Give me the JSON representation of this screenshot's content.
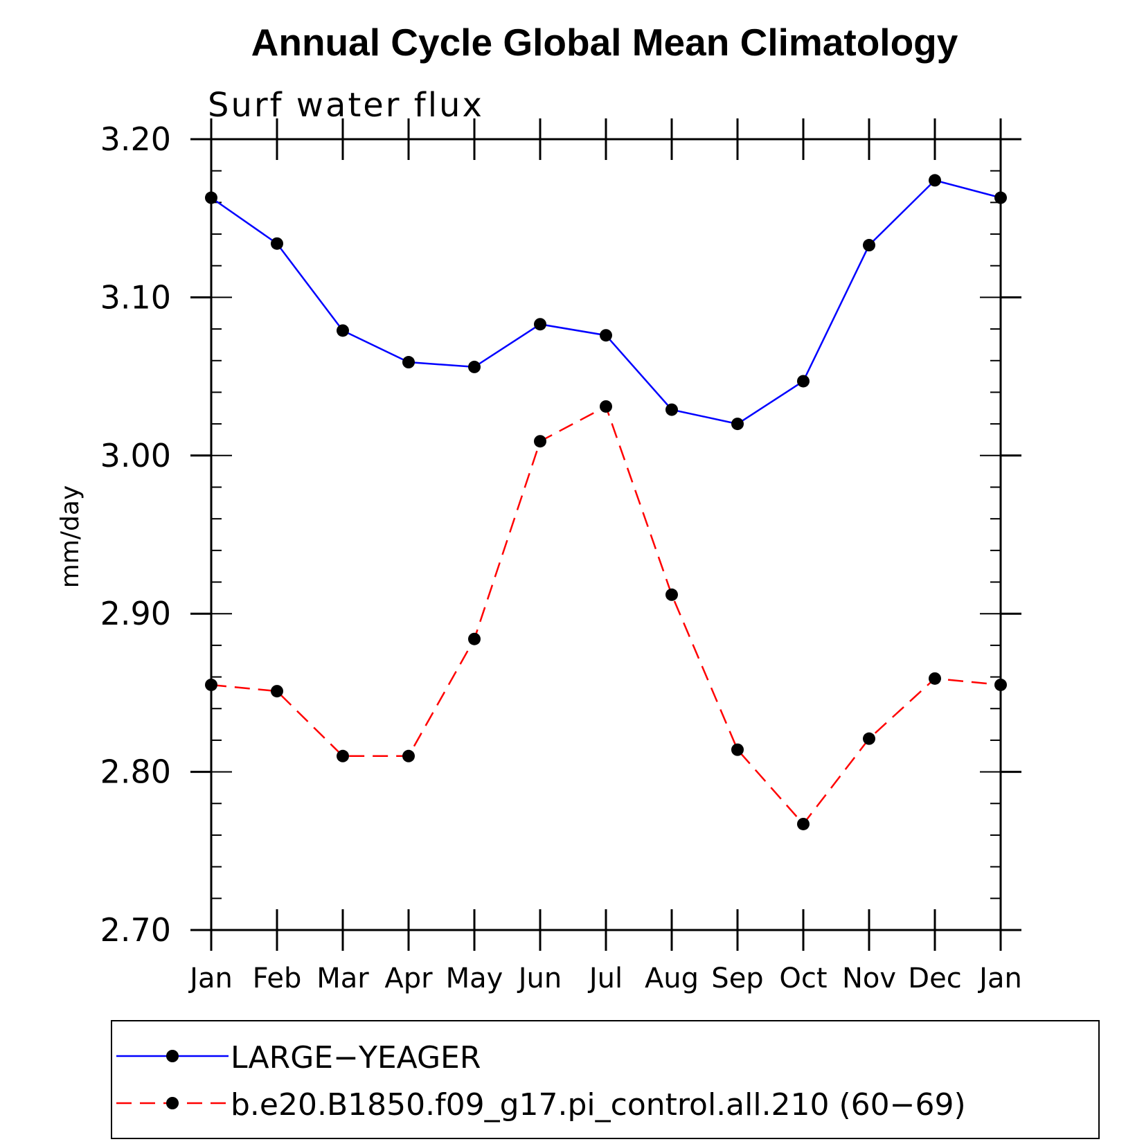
{
  "chart_data": {
    "type": "line",
    "title": "Annual Cycle Global Mean Climatology",
    "subtitle": "Surf water flux",
    "xlabel": "",
    "ylabel": "mm/day",
    "categories": [
      "Jan",
      "Feb",
      "Mar",
      "Apr",
      "May",
      "Jun",
      "Jul",
      "Aug",
      "Sep",
      "Oct",
      "Nov",
      "Dec",
      "Jan"
    ],
    "ylim": [
      2.7,
      3.2
    ],
    "yticks": [
      "2.70",
      "2.80",
      "2.90",
      "3.00",
      "3.10",
      "3.20"
    ],
    "series": [
      {
        "name": "LARGE−YEAGER",
        "color": "#0000ff",
        "style": "solid",
        "marker": "filled-circle",
        "values": [
          3.163,
          3.134,
          3.079,
          3.059,
          3.056,
          3.083,
          3.076,
          3.029,
          3.02,
          3.047,
          3.133,
          3.174,
          3.163
        ]
      },
      {
        "name": "b.e20.B1850.f09_g17.pi_control.all.210 (60−69)",
        "color": "#ff0000",
        "style": "dashed",
        "marker": "filled-circle",
        "values": [
          2.855,
          2.851,
          2.81,
          2.81,
          2.884,
          3.009,
          3.031,
          2.912,
          2.814,
          2.767,
          2.821,
          2.859,
          2.855
        ]
      }
    ],
    "legend_position": "bottom"
  }
}
